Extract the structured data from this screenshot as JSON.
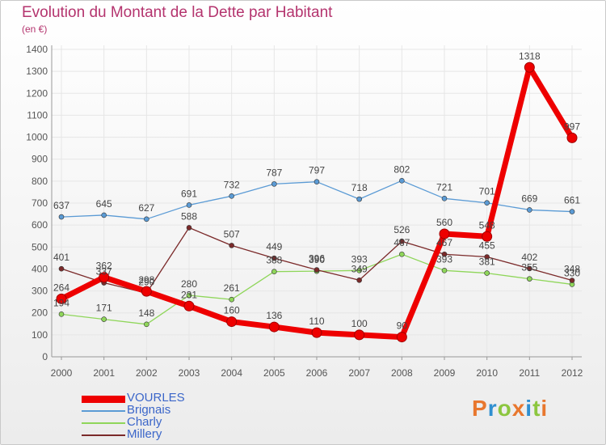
{
  "header": {
    "title": "Evolution du Montant de la Dette par Habitant",
    "subtitle": "(en €)"
  },
  "logo": {
    "text": "Proxiti",
    "colors": [
      "#e8772e",
      "#2f8fd0",
      "#8cc63f",
      "#e8772e",
      "#2f8fd0",
      "#8cc63f",
      "#e8772e"
    ]
  },
  "colors": {
    "title": "#b4346e",
    "axis": "#555555",
    "grid": "#e6e6e6",
    "legend_text": "#3b66c9"
  },
  "chart_data": {
    "type": "line",
    "title": "Evolution du Montant de la Dette par Habitant",
    "ylabel": "(en €)",
    "xlabel": "",
    "x": [
      "2000",
      "2001",
      "2002",
      "2003",
      "2004",
      "2005",
      "2006",
      "2007",
      "2008",
      "2009",
      "2010",
      "2011",
      "2012"
    ],
    "ylim": [
      0,
      1400
    ],
    "yticks": [
      0,
      100,
      200,
      300,
      400,
      500,
      600,
      700,
      800,
      900,
      1000,
      1100,
      1200,
      1300,
      1400
    ],
    "grid": true,
    "legend_position": "bottom-left",
    "series": [
      {
        "name": "VOURLES",
        "color": "#ee0000",
        "width": 7,
        "marker": 6,
        "values": [
          264,
          362,
          298,
          231,
          160,
          136,
          110,
          100,
          90,
          560,
          548,
          1318,
          997
        ]
      },
      {
        "name": "Brignais",
        "color": "#5b9bd5",
        "width": 1.3,
        "marker": 3,
        "values": [
          637,
          645,
          627,
          691,
          732,
          787,
          797,
          718,
          802,
          721,
          701,
          669,
          661
        ]
      },
      {
        "name": "Charly",
        "color": "#8fd65a",
        "width": 1.3,
        "marker": 3,
        "values": [
          194,
          171,
          148,
          280,
          261,
          388,
          390,
          393,
          467,
          393,
          381,
          355,
          330
        ]
      },
      {
        "name": "Millery",
        "color": "#7b2a2a",
        "width": 1.3,
        "marker": 3,
        "values": [
          401,
          337,
          290,
          588,
          507,
          449,
          396,
          349,
          526,
          467,
          455,
          402,
          348
        ]
      }
    ]
  }
}
